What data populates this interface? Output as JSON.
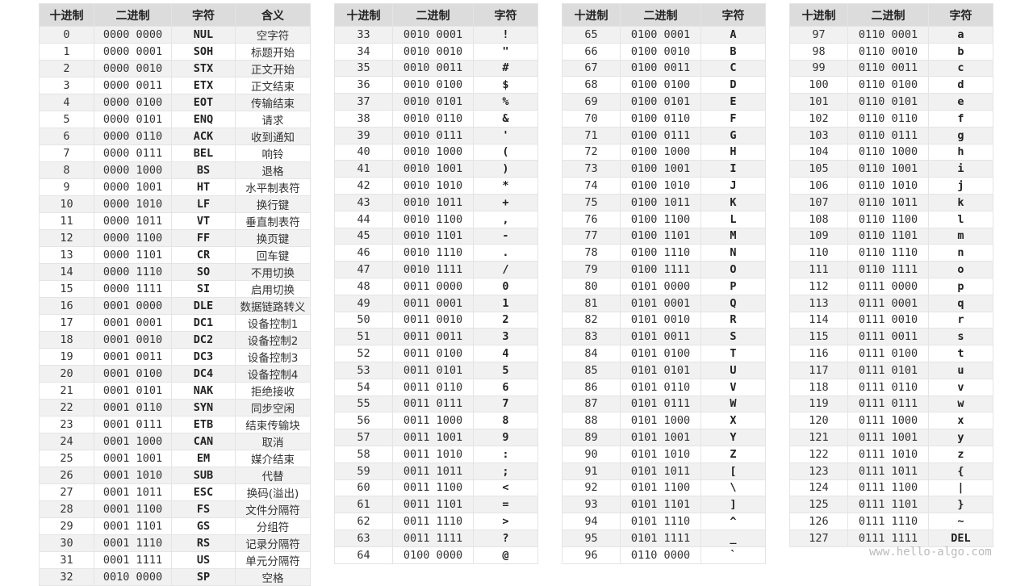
{
  "headers": {
    "dec": "十进制",
    "bin": "二进制",
    "char": "字符",
    "meaning": "含义"
  },
  "watermark": "www.hello-algo.com",
  "tables": [
    {
      "has_meaning": true,
      "rows": [
        [
          "0",
          "0000 0000",
          "NUL",
          "空字符"
        ],
        [
          "1",
          "0000 0001",
          "SOH",
          "标题开始"
        ],
        [
          "2",
          "0000 0010",
          "STX",
          "正文开始"
        ],
        [
          "3",
          "0000 0011",
          "ETX",
          "正文结束"
        ],
        [
          "4",
          "0000 0100",
          "EOT",
          "传输结束"
        ],
        [
          "5",
          "0000 0101",
          "ENQ",
          "请求"
        ],
        [
          "6",
          "0000 0110",
          "ACK",
          "收到通知"
        ],
        [
          "7",
          "0000 0111",
          "BEL",
          "响铃"
        ],
        [
          "8",
          "0000 1000",
          "BS",
          "退格"
        ],
        [
          "9",
          "0000 1001",
          "HT",
          "水平制表符"
        ],
        [
          "10",
          "0000 1010",
          "LF",
          "换行键"
        ],
        [
          "11",
          "0000 1011",
          "VT",
          "垂直制表符"
        ],
        [
          "12",
          "0000 1100",
          "FF",
          "换页键"
        ],
        [
          "13",
          "0000 1101",
          "CR",
          "回车键"
        ],
        [
          "14",
          "0000 1110",
          "SO",
          "不用切换"
        ],
        [
          "15",
          "0000 1111",
          "SI",
          "启用切换"
        ],
        [
          "16",
          "0001 0000",
          "DLE",
          "数据链路转义"
        ],
        [
          "17",
          "0001 0001",
          "DC1",
          "设备控制1"
        ],
        [
          "18",
          "0001 0010",
          "DC2",
          "设备控制2"
        ],
        [
          "19",
          "0001 0011",
          "DC3",
          "设备控制3"
        ],
        [
          "20",
          "0001 0100",
          "DC4",
          "设备控制4"
        ],
        [
          "21",
          "0001 0101",
          "NAK",
          "拒绝接收"
        ],
        [
          "22",
          "0001 0110",
          "SYN",
          "同步空闲"
        ],
        [
          "23",
          "0001 0111",
          "ETB",
          "结束传输块"
        ],
        [
          "24",
          "0001 1000",
          "CAN",
          "取消"
        ],
        [
          "25",
          "0001 1001",
          "EM",
          "媒介结束"
        ],
        [
          "26",
          "0001 1010",
          "SUB",
          "代替"
        ],
        [
          "27",
          "0001 1011",
          "ESC",
          "换码(溢出)"
        ],
        [
          "28",
          "0001 1100",
          "FS",
          "文件分隔符"
        ],
        [
          "29",
          "0001 1101",
          "GS",
          "分组符"
        ],
        [
          "30",
          "0001 1110",
          "RS",
          "记录分隔符"
        ],
        [
          "31",
          "0001 1111",
          "US",
          "单元分隔符"
        ],
        [
          "32",
          "0010 0000",
          "SP",
          "空格"
        ]
      ]
    },
    {
      "has_meaning": false,
      "rows": [
        [
          "33",
          "0010 0001",
          "!"
        ],
        [
          "34",
          "0010 0010",
          "\""
        ],
        [
          "35",
          "0010 0011",
          "#"
        ],
        [
          "36",
          "0010 0100",
          "$"
        ],
        [
          "37",
          "0010 0101",
          "%"
        ],
        [
          "38",
          "0010 0110",
          "&"
        ],
        [
          "39",
          "0010 0111",
          "'"
        ],
        [
          "40",
          "0010 1000",
          "("
        ],
        [
          "41",
          "0010 1001",
          ")"
        ],
        [
          "42",
          "0010 1010",
          "*"
        ],
        [
          "43",
          "0010 1011",
          "+"
        ],
        [
          "44",
          "0010 1100",
          ","
        ],
        [
          "45",
          "0010 1101",
          "-"
        ],
        [
          "46",
          "0010 1110",
          "."
        ],
        [
          "47",
          "0010 1111",
          "/"
        ],
        [
          "48",
          "0011 0000",
          "0"
        ],
        [
          "49",
          "0011 0001",
          "1"
        ],
        [
          "50",
          "0011 0010",
          "2"
        ],
        [
          "51",
          "0011 0011",
          "3"
        ],
        [
          "52",
          "0011 0100",
          "4"
        ],
        [
          "53",
          "0011 0101",
          "5"
        ],
        [
          "54",
          "0011 0110",
          "6"
        ],
        [
          "55",
          "0011 0111",
          "7"
        ],
        [
          "56",
          "0011 1000",
          "8"
        ],
        [
          "57",
          "0011 1001",
          "9"
        ],
        [
          "58",
          "0011 1010",
          ":"
        ],
        [
          "59",
          "0011 1011",
          ";"
        ],
        [
          "60",
          "0011 1100",
          "<"
        ],
        [
          "61",
          "0011 1101",
          "="
        ],
        [
          "62",
          "0011 1110",
          ">"
        ],
        [
          "63",
          "0011 1111",
          "?"
        ],
        [
          "64",
          "0100 0000",
          "@"
        ]
      ]
    },
    {
      "has_meaning": false,
      "rows": [
        [
          "65",
          "0100 0001",
          "A"
        ],
        [
          "66",
          "0100 0010",
          "B"
        ],
        [
          "67",
          "0100 0011",
          "C"
        ],
        [
          "68",
          "0100 0100",
          "D"
        ],
        [
          "69",
          "0100 0101",
          "E"
        ],
        [
          "70",
          "0100 0110",
          "F"
        ],
        [
          "71",
          "0100 0111",
          "G"
        ],
        [
          "72",
          "0100 1000",
          "H"
        ],
        [
          "73",
          "0100 1001",
          "I"
        ],
        [
          "74",
          "0100 1010",
          "J"
        ],
        [
          "75",
          "0100 1011",
          "K"
        ],
        [
          "76",
          "0100 1100",
          "L"
        ],
        [
          "77",
          "0100 1101",
          "M"
        ],
        [
          "78",
          "0100 1110",
          "N"
        ],
        [
          "79",
          "0100 1111",
          "O"
        ],
        [
          "80",
          "0101 0000",
          "P"
        ],
        [
          "81",
          "0101 0001",
          "Q"
        ],
        [
          "82",
          "0101 0010",
          "R"
        ],
        [
          "83",
          "0101 0011",
          "S"
        ],
        [
          "84",
          "0101 0100",
          "T"
        ],
        [
          "85",
          "0101 0101",
          "U"
        ],
        [
          "86",
          "0101 0110",
          "V"
        ],
        [
          "87",
          "0101 0111",
          "W"
        ],
        [
          "88",
          "0101 1000",
          "X"
        ],
        [
          "89",
          "0101 1001",
          "Y"
        ],
        [
          "90",
          "0101 1010",
          "Z"
        ],
        [
          "91",
          "0101 1011",
          "["
        ],
        [
          "92",
          "0101 1100",
          "\\"
        ],
        [
          "93",
          "0101 1101",
          "]"
        ],
        [
          "94",
          "0101 1110",
          "^"
        ],
        [
          "95",
          "0101 1111",
          "_"
        ],
        [
          "96",
          "0110 0000",
          "`"
        ]
      ]
    },
    {
      "has_meaning": false,
      "rows": [
        [
          "97",
          "0110 0001",
          "a"
        ],
        [
          "98",
          "0110 0010",
          "b"
        ],
        [
          "99",
          "0110 0011",
          "c"
        ],
        [
          "100",
          "0110 0100",
          "d"
        ],
        [
          "101",
          "0110 0101",
          "e"
        ],
        [
          "102",
          "0110 0110",
          "f"
        ],
        [
          "103",
          "0110 0111",
          "g"
        ],
        [
          "104",
          "0110 1000",
          "h"
        ],
        [
          "105",
          "0110 1001",
          "i"
        ],
        [
          "106",
          "0110 1010",
          "j"
        ],
        [
          "107",
          "0110 1011",
          "k"
        ],
        [
          "108",
          "0110 1100",
          "l"
        ],
        [
          "109",
          "0110 1101",
          "m"
        ],
        [
          "110",
          "0110 1110",
          "n"
        ],
        [
          "111",
          "0110 1111",
          "o"
        ],
        [
          "112",
          "0111 0000",
          "p"
        ],
        [
          "113",
          "0111 0001",
          "q"
        ],
        [
          "114",
          "0111 0010",
          "r"
        ],
        [
          "115",
          "0111 0011",
          "s"
        ],
        [
          "116",
          "0111 0100",
          "t"
        ],
        [
          "117",
          "0111 0101",
          "u"
        ],
        [
          "118",
          "0111 0110",
          "v"
        ],
        [
          "119",
          "0111 0111",
          "w"
        ],
        [
          "120",
          "0111 1000",
          "x"
        ],
        [
          "121",
          "0111 1001",
          "y"
        ],
        [
          "122",
          "0111 1010",
          "z"
        ],
        [
          "123",
          "0111 1011",
          "{"
        ],
        [
          "124",
          "0111 1100",
          "|"
        ],
        [
          "125",
          "0111 1101",
          "}"
        ],
        [
          "126",
          "0111 1110",
          "~"
        ],
        [
          "127",
          "0111 1111",
          "DEL"
        ]
      ]
    }
  ]
}
